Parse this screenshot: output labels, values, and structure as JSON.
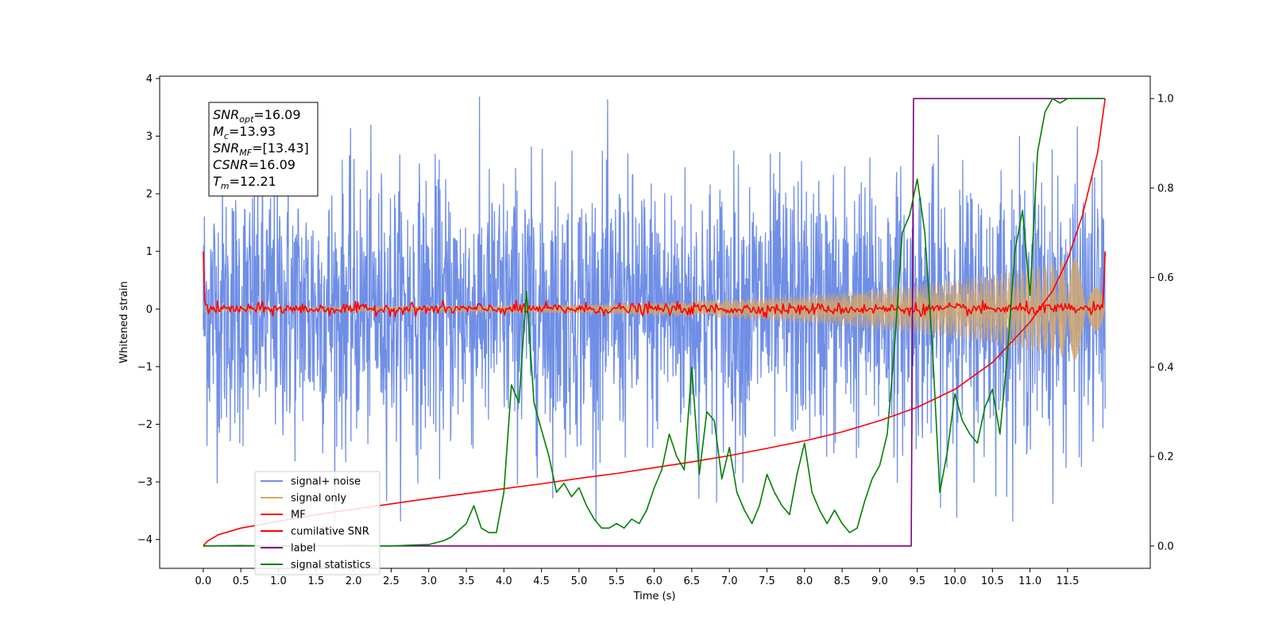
{
  "chart_data": {
    "type": "line",
    "xlabel": "Time (s)",
    "ylabel": "Whitened strain",
    "xlim": [
      -0.58,
      12.6
    ],
    "ylim": [
      -4.5,
      4.04
    ],
    "y2lim": [
      -0.05,
      1.05
    ],
    "x_ticks": [
      0.0,
      0.5,
      1.0,
      1.5,
      2.0,
      2.5,
      3.0,
      3.5,
      4.0,
      4.5,
      5.0,
      5.5,
      6.0,
      6.5,
      7.0,
      7.5,
      8.0,
      8.5,
      9.0,
      9.5,
      10.0,
      10.5,
      11.0,
      11.5
    ],
    "x_tick_labels": [
      "0.0",
      "0.5",
      "1.0",
      "1.5",
      "2.0",
      "2.5",
      "3.0",
      "3.5",
      "4.0",
      "4.5",
      "5.0",
      "5.5",
      "6.0",
      "6.5",
      "7.0",
      "7.5",
      "8.0",
      "8.5",
      "9.0",
      "9.5",
      "10.0",
      "10.5",
      "11.0",
      "11.5"
    ],
    "y_ticks": [
      4,
      3,
      2,
      1,
      0,
      -1,
      -2,
      -3,
      -4
    ],
    "y_tick_labels": [
      "4",
      "3",
      "2",
      "1",
      "0",
      "−1",
      "−2",
      "−3",
      "−4"
    ],
    "y2_ticks": [
      1.0,
      0.8,
      0.6,
      0.4,
      0.2,
      0.0
    ],
    "y2_tick_labels": [
      "1.0",
      "0.8",
      "0.6",
      "0.4",
      "0.2",
      "0.0"
    ],
    "grid": false,
    "legend_position": "lower-left",
    "series": [
      {
        "name": "signal+ noise",
        "color": "#6f8ee6",
        "axis": "left",
        "style": "noise",
        "x_range": [
          0,
          12.0
        ],
        "amplitude": 3.2,
        "samples": 2400
      },
      {
        "name": "signal only",
        "color": "#d4a868",
        "axis": "left",
        "style": "chirp",
        "x_range": [
          0,
          12.0
        ],
        "amplitude_start": 0.05,
        "amplitude_end": 1.0
      },
      {
        "name": "MF",
        "color": "#ff0000",
        "axis": "left",
        "style": "flat-noise",
        "x_range": [
          0,
          12.0
        ],
        "start_value": 1.0,
        "end_value": 1.0
      },
      {
        "name": "cumilative SNR",
        "color": "#ff0000",
        "axis": "right",
        "x": [
          0.0,
          0.05,
          0.2,
          0.5,
          1.0,
          1.5,
          2.0,
          2.5,
          3.0,
          3.5,
          4.0,
          4.5,
          5.0,
          5.5,
          6.0,
          6.5,
          7.0,
          7.5,
          8.0,
          8.5,
          9.0,
          9.5,
          10.0,
          10.5,
          11.0,
          11.3,
          11.5,
          11.7,
          11.9,
          12.0
        ],
        "y": [
          0.0,
          0.01,
          0.025,
          0.04,
          0.055,
          0.07,
          0.082,
          0.094,
          0.106,
          0.117,
          0.128,
          0.139,
          0.151,
          0.162,
          0.175,
          0.188,
          0.202,
          0.218,
          0.235,
          0.255,
          0.28,
          0.31,
          0.35,
          0.41,
          0.5,
          0.57,
          0.64,
          0.74,
          0.88,
          1.0
        ]
      },
      {
        "name": "label",
        "color": "#800080",
        "axis": "right",
        "x": [
          0.0,
          9.42,
          9.45,
          12.0
        ],
        "y": [
          0.0,
          0.0,
          1.0,
          1.0
        ]
      },
      {
        "name": "signal statistics",
        "color": "#008000",
        "axis": "right",
        "x": [
          0.0,
          0.5,
          1.0,
          1.5,
          2.0,
          2.5,
          2.8,
          3.0,
          3.2,
          3.3,
          3.4,
          3.5,
          3.6,
          3.7,
          3.8,
          3.9,
          4.0,
          4.1,
          4.2,
          4.3,
          4.4,
          4.5,
          4.6,
          4.7,
          4.8,
          4.9,
          5.0,
          5.1,
          5.2,
          5.3,
          5.4,
          5.5,
          5.6,
          5.7,
          5.8,
          5.9,
          6.0,
          6.1,
          6.2,
          6.3,
          6.4,
          6.5,
          6.6,
          6.7,
          6.8,
          6.9,
          7.0,
          7.1,
          7.2,
          7.3,
          7.4,
          7.5,
          7.6,
          7.7,
          7.8,
          7.9,
          8.0,
          8.1,
          8.2,
          8.3,
          8.4,
          8.5,
          8.6,
          8.7,
          8.8,
          8.9,
          9.0,
          9.1,
          9.2,
          9.3,
          9.4,
          9.5,
          9.6,
          9.7,
          9.8,
          9.9,
          10.0,
          10.1,
          10.2,
          10.3,
          10.4,
          10.5,
          10.6,
          10.7,
          10.8,
          10.9,
          11.0,
          11.1,
          11.2,
          11.3,
          11.4,
          11.5,
          11.6,
          11.7,
          11.8,
          11.9,
          12.0
        ],
        "y": [
          0.0,
          0.001,
          0.0,
          0.0,
          0.001,
          0.0,
          0.002,
          0.003,
          0.012,
          0.02,
          0.035,
          0.05,
          0.09,
          0.04,
          0.03,
          0.03,
          0.12,
          0.36,
          0.32,
          0.57,
          0.32,
          0.26,
          0.2,
          0.12,
          0.14,
          0.11,
          0.13,
          0.09,
          0.06,
          0.04,
          0.04,
          0.05,
          0.04,
          0.06,
          0.05,
          0.08,
          0.13,
          0.17,
          0.25,
          0.2,
          0.17,
          0.4,
          0.16,
          0.3,
          0.28,
          0.15,
          0.22,
          0.12,
          0.08,
          0.05,
          0.09,
          0.16,
          0.12,
          0.09,
          0.07,
          0.16,
          0.23,
          0.12,
          0.08,
          0.05,
          0.08,
          0.05,
          0.03,
          0.04,
          0.1,
          0.15,
          0.18,
          0.25,
          0.45,
          0.7,
          0.74,
          0.82,
          0.7,
          0.45,
          0.12,
          0.21,
          0.34,
          0.28,
          0.25,
          0.23,
          0.31,
          0.35,
          0.25,
          0.43,
          0.66,
          0.75,
          0.56,
          0.88,
          0.97,
          1.0,
          0.99,
          1.0,
          1.0,
          1.0,
          1.0,
          1.0,
          1.0
        ]
      }
    ],
    "annotation": {
      "lines": [
        {
          "var": "SNR",
          "sub": "opt",
          "value": "=16.09"
        },
        {
          "var": "M",
          "sub": "c",
          "value": "=13.93"
        },
        {
          "var": "SNR",
          "sub": "MF",
          "value": "=[13.43]"
        },
        {
          "var": "CSNR",
          "sub": "",
          "value": "=16.09"
        },
        {
          "var": "T",
          "sub": "m",
          "value": "=12.21"
        }
      ]
    }
  }
}
